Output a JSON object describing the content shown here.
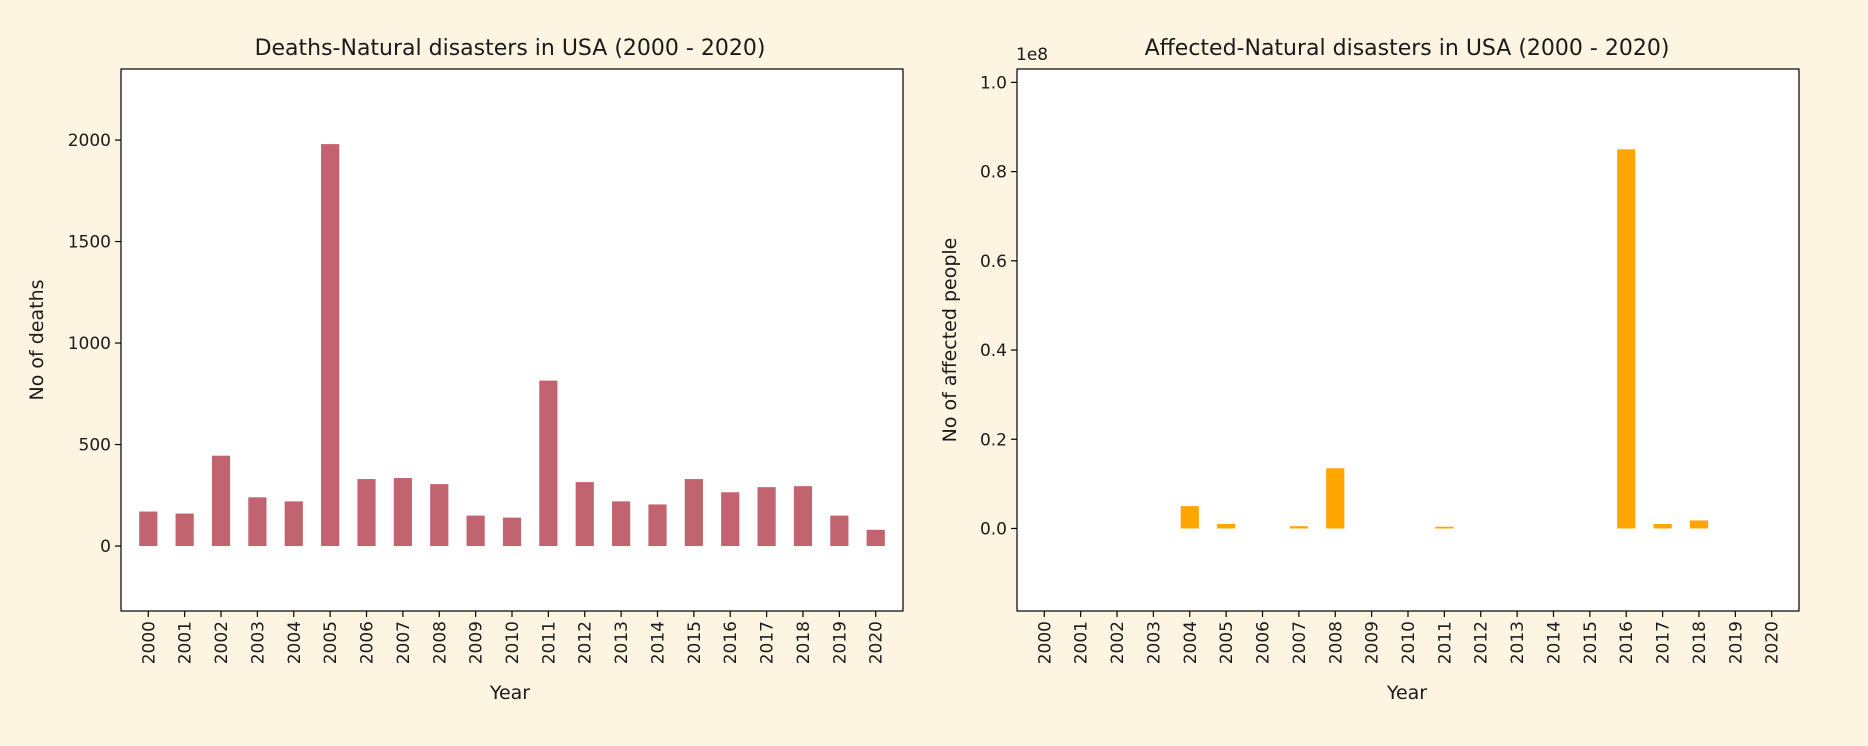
{
  "chart_data": [
    {
      "type": "bar",
      "title": "Deaths-Natural disasters in USA (2000 - 2020)",
      "xlabel": "Year",
      "ylabel": "No of deaths",
      "categories": [
        "2000",
        "2001",
        "2002",
        "2003",
        "2004",
        "2005",
        "2006",
        "2007",
        "2008",
        "2009",
        "2010",
        "2011",
        "2012",
        "2013",
        "2014",
        "2015",
        "2016",
        "2017",
        "2018",
        "2019",
        "2020"
      ],
      "values": [
        170,
        160,
        445,
        240,
        220,
        1980,
        330,
        335,
        305,
        150,
        140,
        815,
        315,
        220,
        205,
        330,
        265,
        290,
        295,
        150,
        80
      ],
      "ylim": [
        -320,
        2350
      ],
      "yticks": [
        0,
        500,
        1000,
        1500,
        2000
      ],
      "ytick_labels": [
        "0",
        "500",
        "1000",
        "1500",
        "2000"
      ],
      "color": "#c1646f",
      "grid": false
    },
    {
      "type": "bar",
      "title": "Affected-Natural disasters in USA (2000 - 2020)",
      "xlabel": "Year",
      "ylabel": "No of affected people",
      "offset_text": "1e8",
      "categories": [
        "2000",
        "2001",
        "2002",
        "2003",
        "2004",
        "2005",
        "2006",
        "2007",
        "2008",
        "2009",
        "2010",
        "2011",
        "2012",
        "2013",
        "2014",
        "2015",
        "2016",
        "2017",
        "2018",
        "2019",
        "2020"
      ],
      "values": [
        0,
        0,
        0,
        0,
        5000000,
        1000000,
        0,
        500000,
        13500000,
        0,
        0,
        400000,
        0,
        0,
        0,
        0,
        85000000,
        1000000,
        1800000,
        0,
        0
      ],
      "ylim": [
        -18500000,
        103000000
      ],
      "yticks": [
        0,
        20000000,
        40000000,
        60000000,
        80000000,
        100000000
      ],
      "ytick_labels": [
        "0.0",
        "0.2",
        "0.4",
        "0.6",
        "0.8",
        "1.0"
      ],
      "color": "#ffa500",
      "grid": false
    }
  ]
}
